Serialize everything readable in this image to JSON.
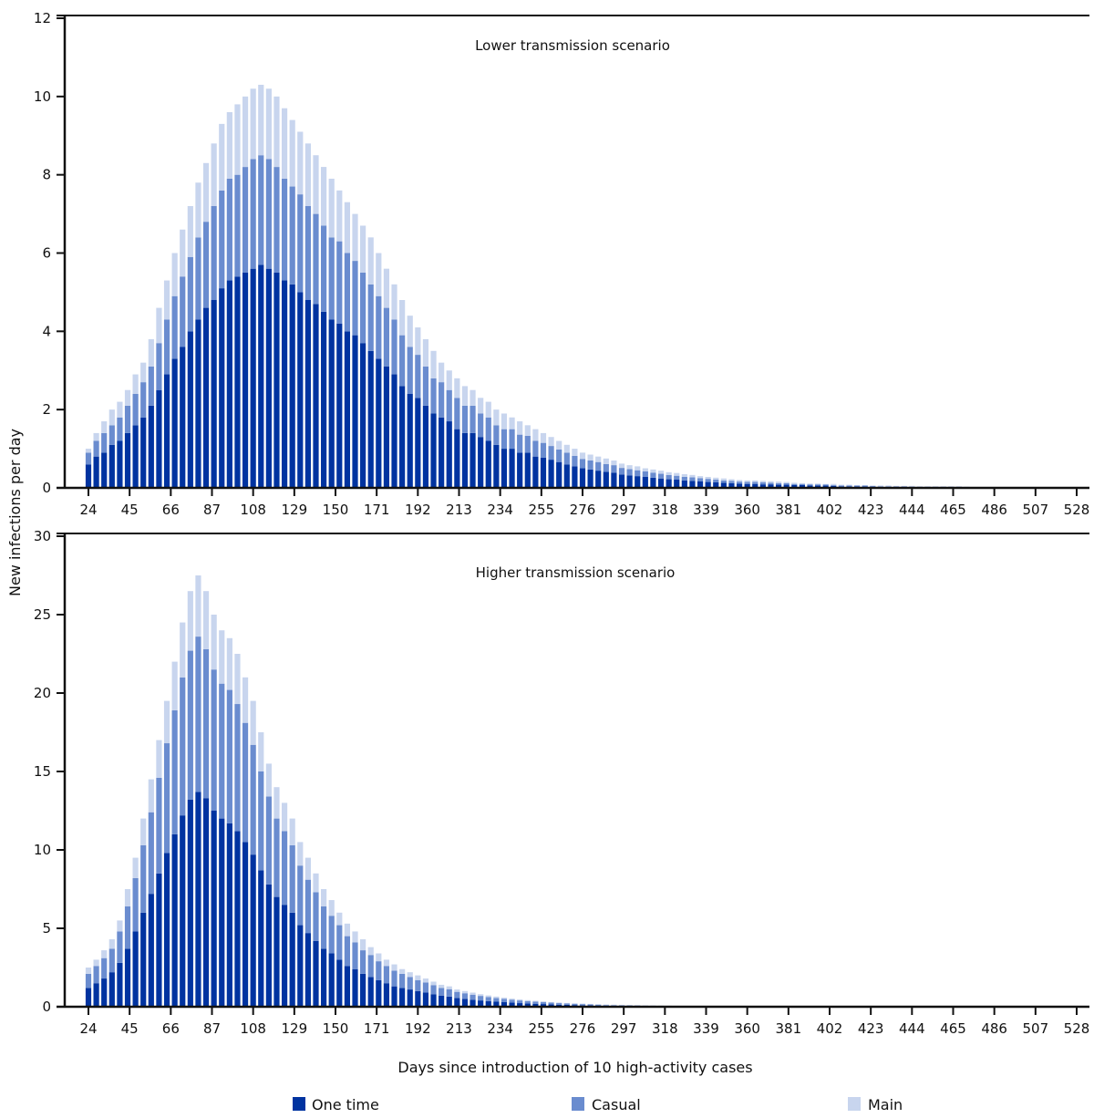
{
  "chart_data": [
    {
      "type": "bar",
      "stacked": true,
      "title": "Lower transmission scenario",
      "ylabel": "New infections per day",
      "xlabel": "Days since introduction of 10 high-activity cases",
      "ylim": [
        0,
        12
      ],
      "yticks": [
        0,
        2,
        4,
        6,
        8,
        10,
        12
      ],
      "xlim": [
        24,
        528
      ],
      "xticks": [
        24,
        45,
        66,
        87,
        108,
        129,
        150,
        171,
        192,
        213,
        234,
        255,
        276,
        297,
        318,
        339,
        360,
        381,
        402,
        423,
        444,
        465,
        486,
        507,
        528
      ],
      "x": [
        24,
        28,
        32,
        36,
        40,
        44,
        48,
        52,
        56,
        60,
        64,
        68,
        72,
        76,
        80,
        84,
        88,
        92,
        96,
        100,
        104,
        108,
        112,
        116,
        120,
        124,
        128,
        132,
        136,
        140,
        144,
        148,
        152,
        156,
        160,
        164,
        168,
        172,
        176,
        180,
        184,
        188,
        192,
        196,
        200,
        204,
        208,
        212,
        216,
        220,
        224,
        228,
        232,
        236,
        240,
        244,
        248,
        252,
        256,
        260,
        264,
        268,
        272,
        276,
        280,
        284,
        288,
        292,
        296,
        300,
        304,
        308,
        312,
        316,
        320,
        324,
        328,
        332,
        336,
        340,
        344,
        348,
        352,
        356,
        360,
        364,
        368,
        372,
        376,
        380,
        384,
        388,
        392,
        396,
        400,
        404,
        408,
        412,
        416,
        420,
        424,
        428,
        432,
        436,
        440,
        444,
        448,
        452,
        456,
        460,
        464,
        468,
        472,
        476,
        480,
        484,
        488,
        492,
        496,
        500,
        504,
        508,
        512,
        516,
        520,
        524,
        528
      ],
      "series": [
        {
          "name": "One time",
          "color": "#0033a0",
          "values": [
            0.6,
            0.8,
            0.9,
            1.1,
            1.2,
            1.4,
            1.6,
            1.8,
            2.1,
            2.5,
            2.9,
            3.3,
            3.6,
            4.0,
            4.3,
            4.6,
            4.8,
            5.1,
            5.3,
            5.4,
            5.5,
            5.6,
            5.7,
            5.6,
            5.5,
            5.3,
            5.2,
            5.0,
            4.8,
            4.7,
            4.5,
            4.3,
            4.2,
            4.0,
            3.9,
            3.7,
            3.5,
            3.3,
            3.1,
            2.9,
            2.6,
            2.4,
            2.3,
            2.1,
            1.9,
            1.8,
            1.7,
            1.5,
            1.4,
            1.4,
            1.3,
            1.2,
            1.1,
            1.0,
            1.0,
            0.9,
            0.9,
            0.8,
            0.77,
            0.72,
            0.66,
            0.6,
            0.55,
            0.5,
            0.47,
            0.44,
            0.41,
            0.39,
            0.34,
            0.32,
            0.3,
            0.28,
            0.26,
            0.24,
            0.22,
            0.21,
            0.19,
            0.18,
            0.17,
            0.15,
            0.14,
            0.13,
            0.12,
            0.11,
            0.1,
            0.1,
            0.09,
            0.09,
            0.08,
            0.08,
            0.07,
            0.07,
            0.06,
            0.06,
            0.06,
            0.05,
            0.04,
            0.04,
            0.04,
            0.04,
            0.03,
            0.03,
            0.03,
            0.03,
            0.03,
            0.02,
            0.02,
            0.02,
            0.02,
            0.02,
            0.02,
            0.02,
            0.01,
            0.01,
            0.01,
            0.01,
            0.01,
            0.01,
            0.01,
            0.01,
            0,
            0.01,
            0,
            0,
            0.01,
            0,
            0
          ]
        },
        {
          "name": "Casual",
          "color": "#6a8ccf",
          "values": [
            0.3,
            0.4,
            0.5,
            0.5,
            0.6,
            0.7,
            0.8,
            0.9,
            1.0,
            1.2,
            1.4,
            1.6,
            1.8,
            1.9,
            2.1,
            2.2,
            2.4,
            2.5,
            2.6,
            2.6,
            2.7,
            2.8,
            2.8,
            2.8,
            2.7,
            2.6,
            2.5,
            2.5,
            2.4,
            2.3,
            2.2,
            2.1,
            2.1,
            2.0,
            1.9,
            1.8,
            1.7,
            1.6,
            1.5,
            1.4,
            1.3,
            1.2,
            1.1,
            1.0,
            0.9,
            0.9,
            0.8,
            0.8,
            0.7,
            0.7,
            0.6,
            0.6,
            0.5,
            0.5,
            0.5,
            0.46,
            0.43,
            0.4,
            0.38,
            0.35,
            0.32,
            0.3,
            0.27,
            0.24,
            0.23,
            0.22,
            0.2,
            0.19,
            0.17,
            0.16,
            0.15,
            0.14,
            0.13,
            0.12,
            0.11,
            0.1,
            0.09,
            0.09,
            0.08,
            0.08,
            0.07,
            0.06,
            0.06,
            0.05,
            0.05,
            0.05,
            0.05,
            0.04,
            0.04,
            0.04,
            0.03,
            0.03,
            0.03,
            0.03,
            0.03,
            0.02,
            0.02,
            0.02,
            0.02,
            0.02,
            0.02,
            0.01,
            0.01,
            0.01,
            0.01,
            0.01,
            0.01,
            0.01,
            0.01,
            0.01,
            0.01,
            0.01,
            0.01,
            0,
            0.01,
            0,
            0,
            0,
            0,
            0,
            0.01,
            0,
            0,
            0,
            0.01,
            0,
            0
          ]
        },
        {
          "name": "Main",
          "color": "#c8d5ee",
          "values": [
            0.1,
            0.2,
            0.3,
            0.4,
            0.4,
            0.4,
            0.5,
            0.5,
            0.7,
            0.9,
            1.0,
            1.1,
            1.2,
            1.3,
            1.4,
            1.5,
            1.6,
            1.7,
            1.7,
            1.8,
            1.8,
            1.8,
            1.8,
            1.8,
            1.8,
            1.8,
            1.7,
            1.6,
            1.6,
            1.5,
            1.5,
            1.5,
            1.3,
            1.3,
            1.2,
            1.2,
            1.2,
            1.1,
            1.0,
            0.9,
            0.9,
            0.8,
            0.7,
            0.7,
            0.7,
            0.5,
            0.5,
            0.5,
            0.5,
            0.4,
            0.4,
            0.4,
            0.4,
            0.4,
            0.3,
            0.34,
            0.27,
            0.3,
            0.25,
            0.23,
            0.22,
            0.2,
            0.18,
            0.16,
            0.15,
            0.14,
            0.14,
            0.12,
            0.11,
            0.1,
            0.1,
            0.08,
            0.08,
            0.08,
            0.07,
            0.07,
            0.07,
            0.06,
            0.05,
            0.05,
            0.05,
            0.05,
            0.04,
            0.04,
            0.04,
            0.04,
            0.04,
            0.04,
            0.04,
            0.03,
            0.03,
            0.02,
            0.02,
            0.02,
            0.01,
            0.03,
            0.02,
            0.02,
            0.01,
            0.01,
            0.01,
            0.02,
            0.02,
            0.01,
            0.01,
            0.02,
            0.01,
            0.01,
            0.01,
            0.01,
            0.01,
            0.01,
            0.01,
            0.01,
            0,
            0.01,
            0.01,
            0,
            0,
            0,
            0,
            0,
            0.01,
            0,
            0,
            0.01,
            0
          ]
        }
      ]
    },
    {
      "type": "bar",
      "stacked": true,
      "title": "Higher transmission scenario",
      "ylim": [
        0,
        30
      ],
      "yticks": [
        0,
        5,
        10,
        15,
        20,
        25,
        30
      ],
      "xlim": [
        24,
        528
      ],
      "xticks": [
        24,
        45,
        66,
        87,
        108,
        129,
        150,
        171,
        192,
        213,
        234,
        255,
        276,
        297,
        318,
        339,
        360,
        381,
        402,
        423,
        444,
        465,
        486,
        507,
        528
      ],
      "x": [
        24,
        28,
        32,
        36,
        40,
        44,
        48,
        52,
        56,
        60,
        64,
        68,
        72,
        76,
        80,
        84,
        88,
        92,
        96,
        100,
        104,
        108,
        112,
        116,
        120,
        124,
        128,
        132,
        136,
        140,
        144,
        148,
        152,
        156,
        160,
        164,
        168,
        172,
        176,
        180,
        184,
        188,
        192,
        196,
        200,
        204,
        208,
        212,
        216,
        220,
        224,
        228,
        232,
        236,
        240,
        244,
        248,
        252,
        256,
        260,
        264,
        268,
        272,
        276,
        280,
        284,
        288,
        292,
        296,
        300,
        304,
        308,
        312,
        316,
        320,
        324,
        328,
        332,
        336,
        340,
        344,
        348,
        352,
        356,
        360,
        364,
        368,
        372,
        376,
        380,
        384,
        388,
        392,
        396,
        400,
        404,
        408,
        412,
        416,
        420,
        424,
        428,
        432,
        436,
        440,
        444,
        448,
        452,
        456,
        460,
        464,
        468,
        472,
        476,
        480,
        484,
        488,
        492,
        496,
        500,
        504,
        508,
        512,
        516,
        520,
        524,
        528
      ],
      "series": [
        {
          "name": "One time",
          "color": "#0033a0",
          "values": [
            1.2,
            1.5,
            1.8,
            2.2,
            2.8,
            3.7,
            4.8,
            6.0,
            7.2,
            8.5,
            9.8,
            11.0,
            12.2,
            13.2,
            13.7,
            13.3,
            12.5,
            12.0,
            11.7,
            11.2,
            10.5,
            9.7,
            8.7,
            7.8,
            7.0,
            6.5,
            6.0,
            5.2,
            4.7,
            4.2,
            3.7,
            3.4,
            3.0,
            2.6,
            2.4,
            2.1,
            1.9,
            1.7,
            1.5,
            1.3,
            1.2,
            1.1,
            1.0,
            0.9,
            0.8,
            0.7,
            0.65,
            0.55,
            0.5,
            0.45,
            0.4,
            0.36,
            0.32,
            0.29,
            0.26,
            0.23,
            0.21,
            0.19,
            0.17,
            0.15,
            0.13,
            0.12,
            0.11,
            0.1,
            0.09,
            0.08,
            0.07,
            0.06,
            0.06,
            0.05,
            0.05,
            0.04,
            0.04,
            0.03,
            0.03,
            0.03,
            0.02,
            0.02,
            0.02,
            0.02,
            0.01,
            0.01,
            0.01,
            0.01,
            0.01,
            0.01,
            0,
            0.01,
            0,
            0,
            0,
            0,
            0,
            0,
            0,
            0,
            0,
            0,
            0,
            0,
            0,
            0,
            0,
            0,
            0,
            0,
            0,
            0,
            0,
            0,
            0,
            0,
            0,
            0,
            0,
            0,
            0,
            0,
            0,
            0,
            0,
            0,
            0,
            0,
            0,
            0,
            0
          ]
        },
        {
          "name": "Casual",
          "color": "#6a8ccf",
          "values": [
            0.9,
            1.1,
            1.3,
            1.5,
            2.0,
            2.7,
            3.4,
            4.3,
            5.2,
            6.1,
            7.0,
            7.9,
            8.8,
            9.5,
            9.9,
            9.5,
            9.0,
            8.6,
            8.5,
            8.1,
            7.6,
            7.0,
            6.3,
            5.6,
            5.0,
            4.7,
            4.3,
            3.8,
            3.4,
            3.1,
            2.7,
            2.4,
            2.2,
            1.9,
            1.7,
            1.5,
            1.4,
            1.2,
            1.1,
            1.0,
            0.9,
            0.8,
            0.7,
            0.65,
            0.58,
            0.5,
            0.47,
            0.4,
            0.36,
            0.32,
            0.29,
            0.26,
            0.23,
            0.21,
            0.19,
            0.17,
            0.15,
            0.14,
            0.12,
            0.11,
            0.1,
            0.09,
            0.08,
            0.07,
            0.06,
            0.06,
            0.05,
            0.05,
            0.04,
            0.04,
            0.04,
            0.03,
            0.03,
            0.03,
            0.02,
            0.02,
            0.02,
            0.02,
            0.01,
            0.01,
            0.01,
            0.01,
            0.01,
            0.01,
            0.01,
            0,
            0.01,
            0,
            0,
            0,
            0,
            0,
            0,
            0,
            0,
            0,
            0,
            0,
            0,
            0,
            0,
            0,
            0,
            0,
            0,
            0,
            0,
            0,
            0,
            0,
            0,
            0,
            0,
            0,
            0,
            0,
            0,
            0,
            0,
            0,
            0,
            0,
            0,
            0,
            0,
            0,
            0
          ]
        },
        {
          "name": "Main",
          "color": "#c8d5ee",
          "values": [
            0.4,
            0.4,
            0.5,
            0.6,
            0.7,
            1.1,
            1.3,
            1.7,
            2.1,
            2.4,
            2.7,
            3.1,
            3.5,
            3.8,
            3.9,
            3.7,
            3.5,
            3.4,
            3.3,
            3.2,
            2.9,
            2.8,
            2.5,
            2.1,
            2.0,
            1.8,
            1.7,
            1.5,
            1.4,
            1.2,
            1.1,
            1.0,
            0.8,
            0.8,
            0.7,
            0.7,
            0.5,
            0.5,
            0.4,
            0.4,
            0.3,
            0.3,
            0.3,
            0.25,
            0.22,
            0.2,
            0.18,
            0.15,
            0.14,
            0.13,
            0.11,
            0.1,
            0.1,
            0.08,
            0.07,
            0.07,
            0.06,
            0.05,
            0.05,
            0.04,
            0.04,
            0.03,
            0.03,
            0.03,
            0.03,
            0.02,
            0.02,
            0.02,
            0.02,
            0.02,
            0.01,
            0.02,
            0.01,
            0.01,
            0.02,
            0.01,
            0.01,
            0.01,
            0.01,
            0.01,
            0.01,
            0.01,
            0.01,
            0.01,
            0,
            0.01,
            0,
            0,
            0,
            0,
            0,
            0,
            0,
            0,
            0,
            0,
            0,
            0,
            0,
            0,
            0,
            0,
            0,
            0,
            0,
            0,
            0,
            0,
            0,
            0,
            0,
            0,
            0,
            0,
            0,
            0,
            0,
            0,
            0,
            0,
            0,
            0,
            0,
            0,
            0,
            0,
            0
          ]
        }
      ]
    }
  ],
  "legend": [
    {
      "label": "One time",
      "color": "#0033a0"
    },
    {
      "label": "Casual",
      "color": "#6a8ccf"
    },
    {
      "label": "Main",
      "color": "#c8d5ee"
    }
  ]
}
